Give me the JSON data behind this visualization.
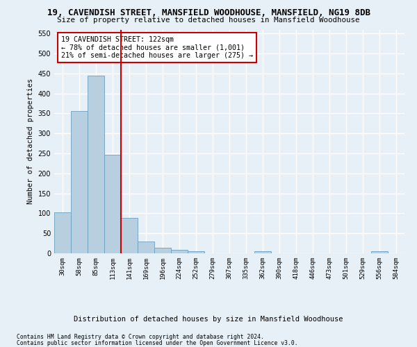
{
  "title_line1": "19, CAVENDISH STREET, MANSFIELD WOODHOUSE, MANSFIELD, NG19 8DB",
  "title_line2": "Size of property relative to detached houses in Mansfield Woodhouse",
  "xlabel": "Distribution of detached houses by size in Mansfield Woodhouse",
  "ylabel": "Number of detached properties",
  "categories": [
    "30sqm",
    "58sqm",
    "85sqm",
    "113sqm",
    "141sqm",
    "169sqm",
    "196sqm",
    "224sqm",
    "252sqm",
    "279sqm",
    "307sqm",
    "335sqm",
    "362sqm",
    "390sqm",
    "418sqm",
    "446sqm",
    "473sqm",
    "501sqm",
    "529sqm",
    "556sqm",
    "584sqm"
  ],
  "values": [
    102,
    356,
    445,
    246,
    88,
    30,
    14,
    9,
    6,
    0,
    0,
    0,
    5,
    0,
    0,
    0,
    0,
    0,
    0,
    5,
    0
  ],
  "bar_color": "#b8cfe0",
  "bar_edge_color": "#6a9fc0",
  "vline_color": "#cc0000",
  "annotation_title": "19 CAVENDISH STREET: 122sqm",
  "annotation_line1": "← 78% of detached houses are smaller (1,001)",
  "annotation_line2": "21% of semi-detached houses are larger (275) →",
  "annotation_box_facecolor": "#ffffff",
  "annotation_box_edgecolor": "#cc0000",
  "ylim": [
    0,
    560
  ],
  "yticks": [
    0,
    50,
    100,
    150,
    200,
    250,
    300,
    350,
    400,
    450,
    500,
    550
  ],
  "footnote1": "Contains HM Land Registry data © Crown copyright and database right 2024.",
  "footnote2": "Contains public sector information licensed under the Open Government Licence v3.0.",
  "background_color": "#e8f0f7",
  "plot_bg_color": "#e8f0f7",
  "grid_color": "#ffffff"
}
